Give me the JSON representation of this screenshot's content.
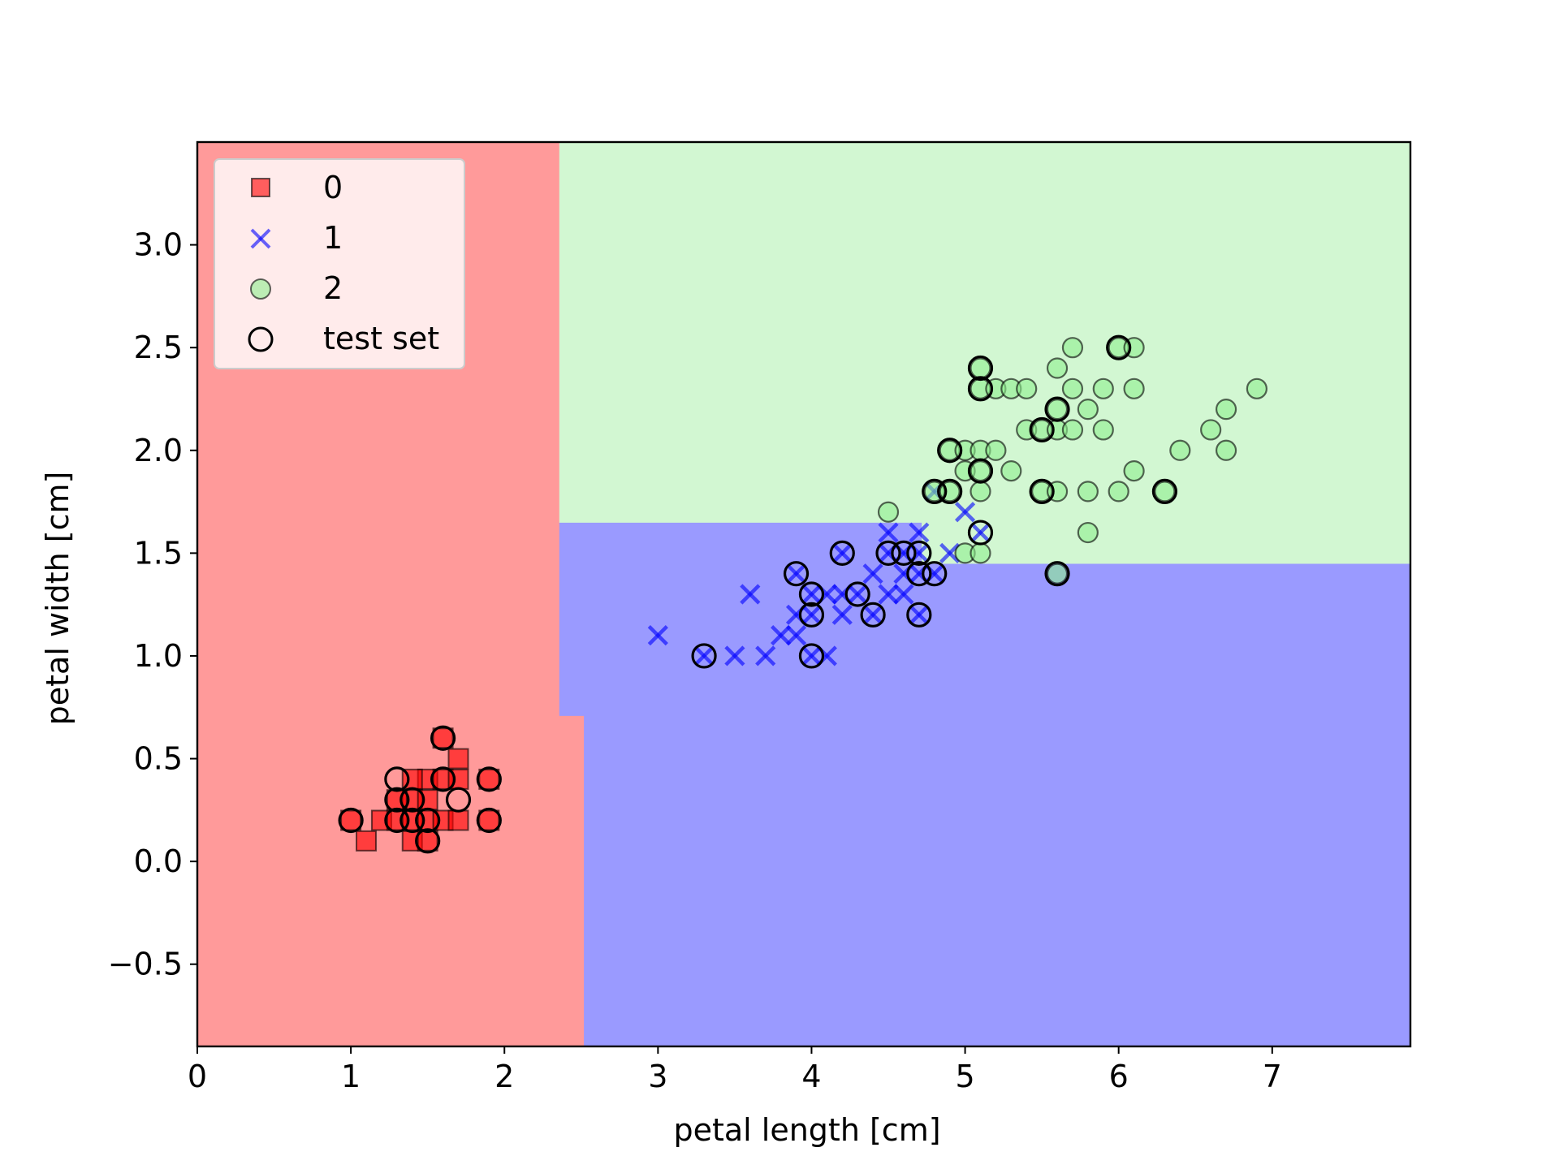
{
  "chart_data": {
    "type": "scatter",
    "title": "",
    "xlabel": "petal length [cm]",
    "ylabel": "petal width [cm]",
    "xlim": [
      0,
      7.9
    ],
    "ylim": [
      -0.9,
      3.5
    ],
    "x_ticks": [
      0,
      1,
      2,
      3,
      4,
      5,
      6,
      7
    ],
    "x_tick_labels": [
      "0",
      "1",
      "2",
      "3",
      "4",
      "5",
      "6",
      "7"
    ],
    "y_ticks": [
      -0.5,
      0.0,
      0.5,
      1.0,
      1.5,
      2.0,
      2.5,
      3.0
    ],
    "y_tick_labels": [
      "−0.5",
      "0.0",
      "0.5",
      "1.0",
      "1.5",
      "2.0",
      "2.5",
      "3.0"
    ],
    "grid": false,
    "legend_position": "top-left",
    "colors": {
      "class0": "#ff0000",
      "class1": "#0000ff",
      "class2": "#90ee90",
      "test": "#000000"
    },
    "decision_regions": [
      {
        "class": "0",
        "color": "#ff9a9a",
        "polygon": [
          [
            0,
            -0.9
          ],
          [
            2.52,
            -0.9
          ],
          [
            2.52,
            0.71
          ],
          [
            2.36,
            0.71
          ],
          [
            2.36,
            3.5
          ],
          [
            0,
            3.5
          ]
        ]
      },
      {
        "class": "1",
        "color": "#9a9aff",
        "polygon": [
          [
            2.52,
            -0.9
          ],
          [
            7.9,
            -0.9
          ],
          [
            7.9,
            1.45
          ],
          [
            4.72,
            1.45
          ],
          [
            4.72,
            1.65
          ],
          [
            2.36,
            1.65
          ],
          [
            2.36,
            0.71
          ],
          [
            2.52,
            0.71
          ]
        ]
      },
      {
        "class": "2",
        "color": "#d2f7d2",
        "polygon": [
          [
            2.36,
            1.65
          ],
          [
            4.72,
            1.65
          ],
          [
            4.72,
            1.45
          ],
          [
            7.9,
            1.45
          ],
          [
            7.9,
            3.5
          ],
          [
            2.36,
            3.5
          ]
        ]
      }
    ],
    "series": [
      {
        "name": "0",
        "marker": "square",
        "points": [
          [
            1.1,
            0.1
          ],
          [
            1.2,
            0.2
          ],
          [
            1.3,
            0.2
          ],
          [
            1.4,
            0.1
          ],
          [
            1.4,
            0.2
          ],
          [
            1.4,
            0.3
          ],
          [
            1.5,
            0.2
          ],
          [
            1.5,
            0.4
          ],
          [
            1.6,
            0.2
          ],
          [
            1.6,
            0.4
          ],
          [
            1.7,
            0.2
          ],
          [
            1.7,
            0.4
          ],
          [
            1.7,
            0.5
          ],
          [
            1.3,
            0.3
          ],
          [
            1.4,
            0.4
          ],
          [
            1.5,
            0.3
          ],
          [
            1.9,
            0.2
          ],
          [
            1.9,
            0.4
          ],
          [
            1.6,
            0.6
          ],
          [
            1.0,
            0.2
          ],
          [
            1.5,
            0.1
          ]
        ]
      },
      {
        "name": "1",
        "marker": "x",
        "points": [
          [
            3.0,
            1.1
          ],
          [
            3.3,
            1.0
          ],
          [
            3.5,
            1.0
          ],
          [
            3.6,
            1.3
          ],
          [
            3.7,
            1.0
          ],
          [
            3.8,
            1.1
          ],
          [
            3.9,
            1.1
          ],
          [
            3.9,
            1.2
          ],
          [
            3.9,
            1.4
          ],
          [
            4.0,
            1.0
          ],
          [
            4.0,
            1.2
          ],
          [
            4.0,
            1.3
          ],
          [
            4.1,
            1.0
          ],
          [
            4.1,
            1.3
          ],
          [
            4.2,
            1.2
          ],
          [
            4.2,
            1.3
          ],
          [
            4.2,
            1.5
          ],
          [
            4.3,
            1.3
          ],
          [
            4.4,
            1.2
          ],
          [
            4.4,
            1.4
          ],
          [
            4.5,
            1.3
          ],
          [
            4.5,
            1.5
          ],
          [
            4.5,
            1.6
          ],
          [
            4.6,
            1.3
          ],
          [
            4.6,
            1.4
          ],
          [
            4.6,
            1.5
          ],
          [
            4.7,
            1.2
          ],
          [
            4.7,
            1.4
          ],
          [
            4.7,
            1.5
          ],
          [
            4.7,
            1.6
          ],
          [
            4.8,
            1.4
          ],
          [
            4.8,
            1.8
          ],
          [
            4.9,
            1.5
          ],
          [
            5.0,
            1.7
          ],
          [
            5.1,
            1.6
          ]
        ]
      },
      {
        "name": "2",
        "marker": "circle",
        "points": [
          [
            4.5,
            1.7
          ],
          [
            4.8,
            1.8
          ],
          [
            4.9,
            1.8
          ],
          [
            4.9,
            2.0
          ],
          [
            5.0,
            1.5
          ],
          [
            5.0,
            1.9
          ],
          [
            5.0,
            2.0
          ],
          [
            5.1,
            1.5
          ],
          [
            5.1,
            1.8
          ],
          [
            5.1,
            1.9
          ],
          [
            5.1,
            2.0
          ],
          [
            5.1,
            2.3
          ],
          [
            5.1,
            2.4
          ],
          [
            5.2,
            2.0
          ],
          [
            5.2,
            2.3
          ],
          [
            5.3,
            1.9
          ],
          [
            5.3,
            2.3
          ],
          [
            5.4,
            2.1
          ],
          [
            5.4,
            2.3
          ],
          [
            5.5,
            1.8
          ],
          [
            5.5,
            2.1
          ],
          [
            5.6,
            1.4
          ],
          [
            5.6,
            1.8
          ],
          [
            5.6,
            2.1
          ],
          [
            5.6,
            2.2
          ],
          [
            5.6,
            2.4
          ],
          [
            5.7,
            2.1
          ],
          [
            5.7,
            2.3
          ],
          [
            5.7,
            2.5
          ],
          [
            5.8,
            1.6
          ],
          [
            5.8,
            1.8
          ],
          [
            5.8,
            2.2
          ],
          [
            5.9,
            2.1
          ],
          [
            5.9,
            2.3
          ],
          [
            6.0,
            1.8
          ],
          [
            6.0,
            2.5
          ],
          [
            6.1,
            1.9
          ],
          [
            6.1,
            2.3
          ],
          [
            6.1,
            2.5
          ],
          [
            6.3,
            1.8
          ],
          [
            6.4,
            2.0
          ],
          [
            6.6,
            2.1
          ],
          [
            6.7,
            2.0
          ],
          [
            6.7,
            2.2
          ],
          [
            6.9,
            2.3
          ]
        ]
      },
      {
        "name": "test set",
        "marker": "open-circle",
        "points": [
          [
            1.0,
            0.2
          ],
          [
            1.3,
            0.2
          ],
          [
            1.3,
            0.3
          ],
          [
            1.3,
            0.4
          ],
          [
            1.4,
            0.2
          ],
          [
            1.4,
            0.3
          ],
          [
            1.5,
            0.1
          ],
          [
            1.5,
            0.2
          ],
          [
            1.6,
            0.4
          ],
          [
            1.6,
            0.6
          ],
          [
            1.7,
            0.3
          ],
          [
            1.9,
            0.2
          ],
          [
            1.9,
            0.4
          ],
          [
            3.3,
            1.0
          ],
          [
            3.9,
            1.4
          ],
          [
            4.0,
            1.0
          ],
          [
            4.0,
            1.2
          ],
          [
            4.0,
            1.3
          ],
          [
            4.2,
            1.5
          ],
          [
            4.3,
            1.3
          ],
          [
            4.4,
            1.2
          ],
          [
            4.5,
            1.5
          ],
          [
            4.6,
            1.5
          ],
          [
            4.7,
            1.2
          ],
          [
            4.7,
            1.4
          ],
          [
            4.7,
            1.5
          ],
          [
            4.8,
            1.4
          ],
          [
            4.8,
            1.8
          ],
          [
            4.9,
            1.8
          ],
          [
            4.9,
            2.0
          ],
          [
            5.1,
            1.6
          ],
          [
            5.1,
            1.9
          ],
          [
            5.1,
            2.3
          ],
          [
            5.1,
            2.4
          ],
          [
            5.5,
            1.8
          ],
          [
            5.5,
            2.1
          ],
          [
            5.6,
            1.4
          ],
          [
            5.6,
            2.2
          ],
          [
            6.0,
            2.5
          ],
          [
            6.3,
            1.8
          ]
        ]
      }
    ]
  }
}
